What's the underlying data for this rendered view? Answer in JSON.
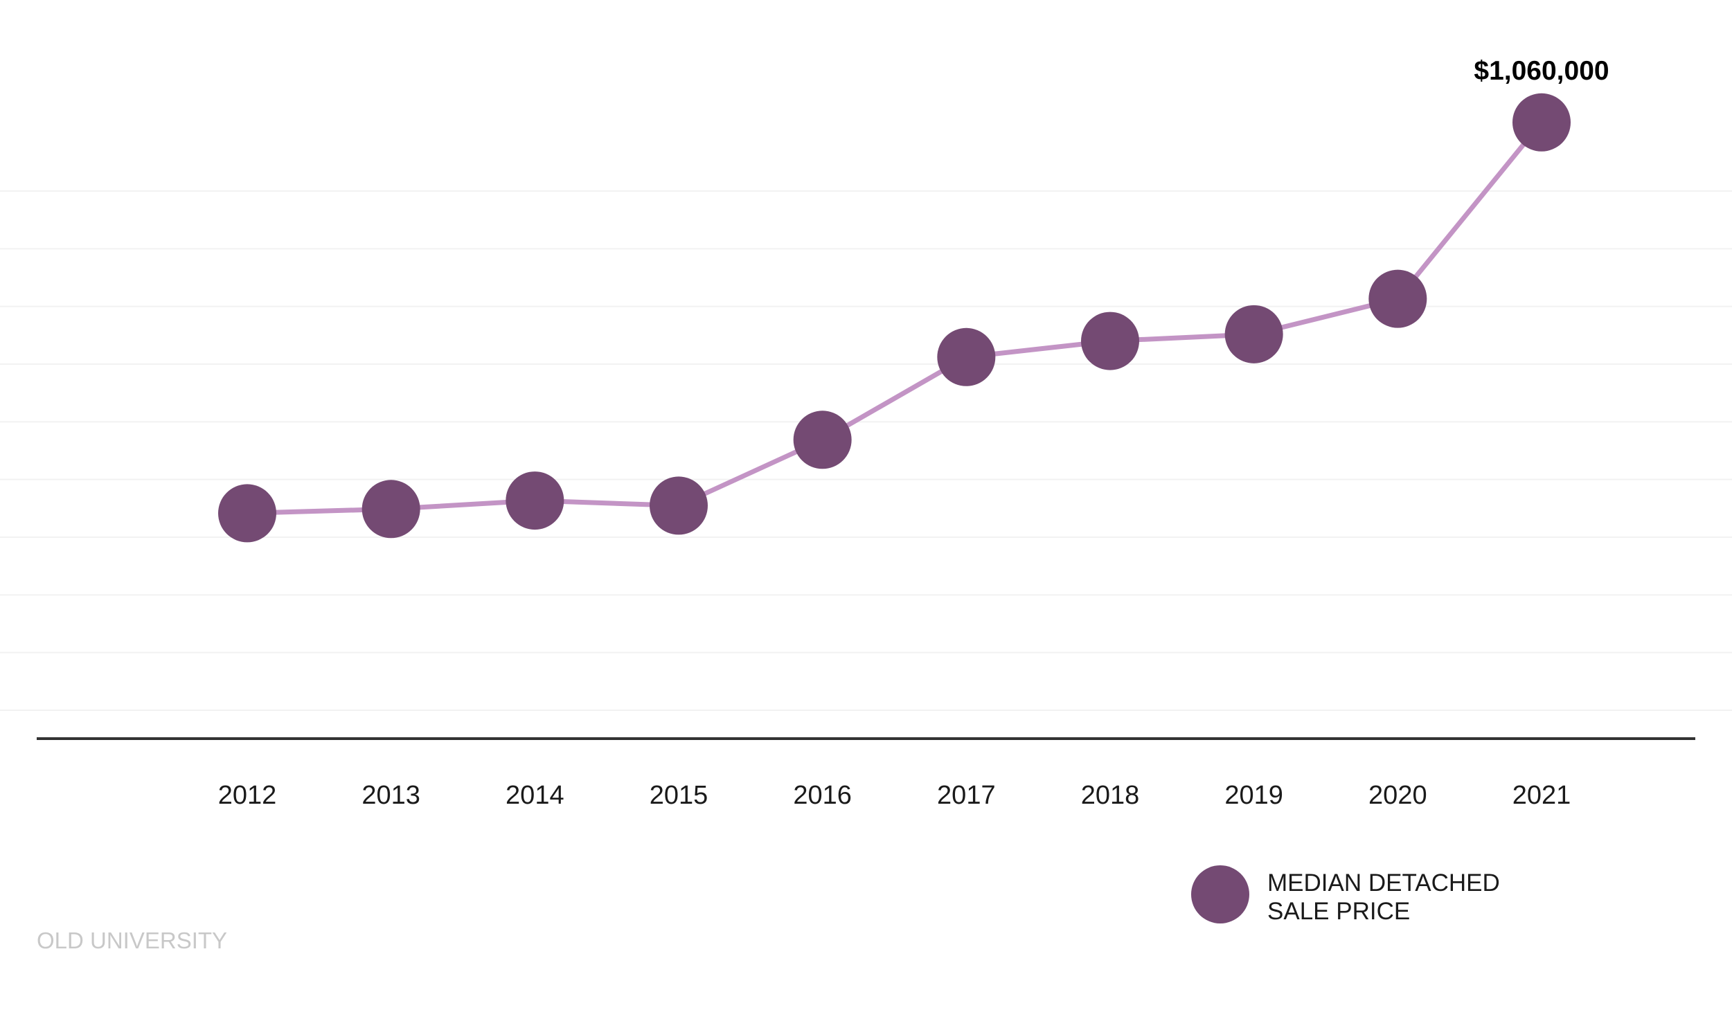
{
  "chart_data": {
    "type": "line",
    "x": [
      "2012",
      "2013",
      "2014",
      "2015",
      "2016",
      "2017",
      "2018",
      "2019",
      "2020",
      "2021"
    ],
    "series": [
      {
        "name": "MEDIAN DETACHED SALE PRICE",
        "values": [
          597000,
          602000,
          612000,
          606000,
          684000,
          782000,
          801000,
          809000,
          851000,
          1060000
        ],
        "color": "#744a73",
        "line_color": "#c394c5"
      }
    ],
    "ylim": [
      330000,
      1150000
    ],
    "grid": true,
    "grid_lines": 10,
    "legend": "bottom-right",
    "data_labels": [
      {
        "index": 9,
        "text": "$1,060,000"
      }
    ],
    "legend_text": [
      "MEDIAN DETACHED",
      "SALE PRICE"
    ]
  },
  "footer": {
    "text": "OLD UNIVERSITY"
  },
  "colors": {
    "marker": "#744a73",
    "line": "#c394c5",
    "axis": "#333333",
    "grid": "#f2f2f2",
    "footer": "#c8c8c8"
  }
}
